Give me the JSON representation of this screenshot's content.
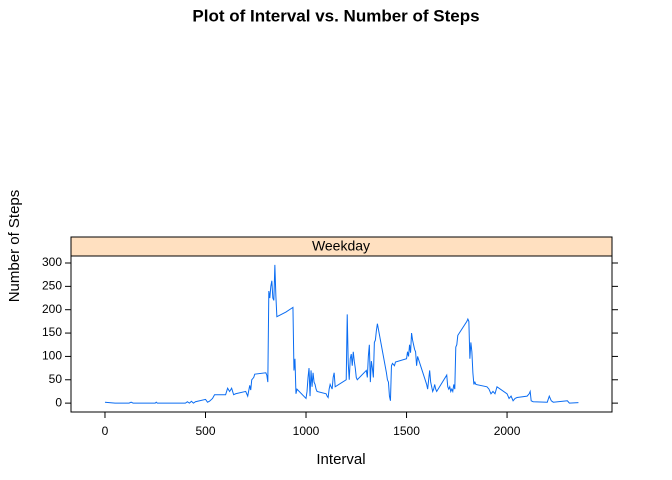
{
  "chart_data": {
    "type": "line",
    "title": "Plot of Interval vs. Number of Steps",
    "strip": "Weekday",
    "x_label": "Interval",
    "y_label": "Number of Steps",
    "color": "#0a6cf2",
    "strip_color": "#ffe0c0",
    "xlim": [
      -169,
      2522
    ],
    "xticks": [
      0,
      500,
      1000,
      1500,
      2000
    ],
    "ylim": [
      -19,
      315
    ],
    "yticks": [
      0,
      50,
      100,
      150,
      200,
      250,
      300
    ],
    "x": [
      0,
      50,
      100,
      120,
      130,
      140,
      200,
      250,
      255,
      260,
      300,
      350,
      400,
      410,
      420,
      430,
      440,
      450,
      500,
      510,
      520,
      535,
      545,
      600,
      610,
      620,
      630,
      640,
      650,
      700,
      710,
      720,
      725,
      730,
      740,
      745,
      800,
      805,
      810,
      815,
      820,
      825,
      830,
      835,
      840,
      845,
      850,
      855,
      900,
      935,
      940,
      945,
      950,
      955,
      1000,
      1005,
      1010,
      1015,
      1020,
      1025,
      1030,
      1035,
      1040,
      1045,
      1050,
      1055,
      1100,
      1105,
      1110,
      1115,
      1120,
      1125,
      1130,
      1135,
      1140,
      1145,
      1200,
      1205,
      1210,
      1215,
      1220,
      1225,
      1230,
      1235,
      1240,
      1245,
      1250,
      1255,
      1300,
      1305,
      1310,
      1315,
      1320,
      1325,
      1330,
      1335,
      1340,
      1345,
      1350,
      1355,
      1400,
      1405,
      1410,
      1415,
      1420,
      1425,
      1430,
      1440,
      1445,
      1500,
      1505,
      1510,
      1515,
      1520,
      1525,
      1530,
      1535,
      1540,
      1545,
      1550,
      1555,
      1600,
      1605,
      1610,
      1615,
      1620,
      1625,
      1630,
      1635,
      1640,
      1645,
      1650,
      1700,
      1705,
      1710,
      1715,
      1720,
      1725,
      1730,
      1735,
      1740,
      1745,
      1750,
      1755,
      1800,
      1805,
      1810,
      1815,
      1820,
      1825,
      1830,
      1835,
      1840,
      1845,
      1900,
      1910,
      1920,
      1930,
      1940,
      1950,
      2000,
      2010,
      2020,
      2030,
      2040,
      2050,
      2100,
      2110,
      2115,
      2120,
      2130,
      2200,
      2210,
      2220,
      2230,
      2300,
      2310,
      2355
    ],
    "values": [
      2,
      0,
      0,
      0,
      2,
      0,
      0,
      0,
      2,
      0,
      0,
      0,
      0,
      3,
      0,
      4,
      0,
      3,
      8,
      2,
      4,
      10,
      18,
      18,
      32,
      25,
      32,
      18,
      20,
      25,
      15,
      38,
      28,
      50,
      55,
      62,
      65,
      60,
      45,
      240,
      225,
      250,
      262,
      225,
      220,
      296,
      230,
      185,
      195,
      205,
      70,
      95,
      20,
      30,
      10,
      25,
      55,
      75,
      15,
      70,
      35,
      65,
      45,
      40,
      30,
      25,
      20,
      15,
      12,
      30,
      40,
      35,
      30,
      55,
      65,
      35,
      50,
      190,
      85,
      50,
      95,
      105,
      80,
      110,
      90,
      75,
      55,
      50,
      70,
      55,
      100,
      125,
      45,
      90,
      75,
      55,
      130,
      135,
      155,
      170,
      65,
      50,
      45,
      15,
      5,
      80,
      85,
      80,
      88,
      95,
      110,
      100,
      125,
      108,
      150,
      135,
      125,
      115,
      110,
      80,
      100,
      40,
      30,
      50,
      70,
      45,
      35,
      25,
      30,
      40,
      30,
      25,
      60,
      35,
      30,
      35,
      25,
      30,
      25,
      40,
      30,
      120,
      125,
      145,
      175,
      180,
      175,
      95,
      130,
      110,
      65,
      40,
      45,
      40,
      35,
      30,
      20,
      25,
      20,
      35,
      20,
      10,
      15,
      5,
      10,
      12,
      15,
      20,
      25,
      5,
      3,
      2,
      15,
      5,
      2,
      5,
      0,
      1
    ]
  }
}
